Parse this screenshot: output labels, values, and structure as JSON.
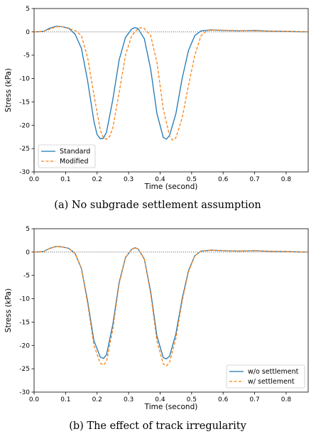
{
  "chart_data": [
    {
      "type": "line",
      "title": "",
      "xlabel": "Time (second)",
      "ylabel": "Stress (kPa)",
      "xlim": [
        0.0,
        0.87
      ],
      "ylim": [
        -30,
        5
      ],
      "xticks": [
        "0.0",
        "0.1",
        "0.2",
        "0.3",
        "0.4",
        "0.5",
        "0.6",
        "0.7",
        "0.8"
      ],
      "yticks": [
        "5",
        "0",
        "-5",
        "-10",
        "-15",
        "-20",
        "-25",
        "-30"
      ],
      "reference_line": {
        "y": 0,
        "style": "dotted",
        "color": "#555555"
      },
      "legend": {
        "placement": "lower-left"
      },
      "caption": "(a)  No subgrade settlement assumption",
      "series": [
        {
          "name": "Standard",
          "color": "#1f77b4",
          "style": "solid",
          "x": [
            0,
            0.03,
            0.05,
            0.07,
            0.09,
            0.11,
            0.13,
            0.15,
            0.17,
            0.19,
            0.2,
            0.21,
            0.22,
            0.23,
            0.25,
            0.27,
            0.29,
            0.31,
            0.32,
            0.33,
            0.35,
            0.37,
            0.39,
            0.41,
            0.42,
            0.43,
            0.45,
            0.47,
            0.49,
            0.51,
            0.53,
            0.56,
            0.6,
            0.65,
            0.7,
            0.75,
            0.8,
            0.87
          ],
          "y": [
            0,
            0.1,
            0.8,
            1.2,
            1.1,
            0.8,
            -0.5,
            -3.5,
            -10.5,
            -19.2,
            -22,
            -22.9,
            -22.8,
            -21.5,
            -14.5,
            -6,
            -1.2,
            0.6,
            0.9,
            0.7,
            -1.5,
            -8,
            -17.5,
            -22.6,
            -23,
            -22.2,
            -17.5,
            -10,
            -4,
            -0.8,
            0.2,
            0.4,
            0.3,
            0.2,
            0.3,
            0.15,
            0.1,
            0
          ]
        },
        {
          "name": "Modified",
          "color": "#ff7f0e",
          "style": "dashed",
          "x": [
            0,
            0.03,
            0.05,
            0.07,
            0.09,
            0.11,
            0.13,
            0.15,
            0.17,
            0.19,
            0.21,
            0.22,
            0.23,
            0.24,
            0.25,
            0.27,
            0.29,
            0.31,
            0.33,
            0.34,
            0.35,
            0.37,
            0.39,
            0.41,
            0.43,
            0.44,
            0.45,
            0.47,
            0.49,
            0.51,
            0.53,
            0.55,
            0.58,
            0.62,
            0.7,
            0.8,
            0.87
          ],
          "y": [
            0,
            0.1,
            0.6,
            1.1,
            1.1,
            0.7,
            0.3,
            -0.8,
            -5.5,
            -13.5,
            -21,
            -22.7,
            -23,
            -22.4,
            -20.5,
            -13,
            -5,
            -0.8,
            0.7,
            0.9,
            0.7,
            -0.8,
            -6.5,
            -16.5,
            -22.3,
            -23.2,
            -22.7,
            -18.5,
            -11.5,
            -5,
            -0.8,
            0.3,
            0.4,
            0.3,
            0.2,
            0.1,
            0
          ]
        }
      ]
    },
    {
      "type": "line",
      "title": "",
      "xlabel": "Time (second)",
      "ylabel": "Stress (kPa)",
      "xlim": [
        0.0,
        0.87
      ],
      "ylim": [
        -30,
        5
      ],
      "xticks": [
        "0.0",
        "0.1",
        "0.2",
        "0.3",
        "0.4",
        "0.5",
        "0.6",
        "0.7",
        "0.8"
      ],
      "yticks": [
        "5",
        "0",
        "-5",
        "-10",
        "-15",
        "-20",
        "-25",
        "-30"
      ],
      "reference_line": {
        "y": 0,
        "style": "dotted",
        "color": "#555555"
      },
      "legend": {
        "placement": "lower-right"
      },
      "caption": "(b)  The effect of track irregularity",
      "series": [
        {
          "name": "w/o settlement",
          "color": "#1f77b4",
          "style": "solid",
          "x": [
            0,
            0.03,
            0.05,
            0.07,
            0.09,
            0.11,
            0.13,
            0.15,
            0.17,
            0.19,
            0.21,
            0.22,
            0.23,
            0.25,
            0.27,
            0.29,
            0.31,
            0.32,
            0.33,
            0.35,
            0.37,
            0.39,
            0.41,
            0.42,
            0.43,
            0.45,
            0.47,
            0.49,
            0.51,
            0.53,
            0.56,
            0.6,
            0.65,
            0.7,
            0.75,
            0.8,
            0.87
          ],
          "y": [
            0,
            0.1,
            0.8,
            1.2,
            1.1,
            0.8,
            -0.3,
            -3.5,
            -10.5,
            -19,
            -22.5,
            -22.8,
            -22,
            -15.5,
            -6.5,
            -1.2,
            0.6,
            0.9,
            0.7,
            -1.5,
            -8.5,
            -18,
            -22.6,
            -22.9,
            -22.3,
            -17.5,
            -10,
            -4,
            -0.8,
            0.2,
            0.4,
            0.3,
            0.2,
            0.3,
            0.15,
            0.1,
            0
          ]
        },
        {
          "name": "w/ settlement",
          "color": "#ff7f0e",
          "style": "dashed",
          "x": [
            0,
            0.03,
            0.05,
            0.07,
            0.09,
            0.11,
            0.13,
            0.15,
            0.17,
            0.19,
            0.21,
            0.22,
            0.23,
            0.25,
            0.27,
            0.29,
            0.31,
            0.32,
            0.33,
            0.35,
            0.37,
            0.39,
            0.41,
            0.42,
            0.43,
            0.45,
            0.47,
            0.49,
            0.51,
            0.53,
            0.56,
            0.6,
            0.65,
            0.7,
            0.75,
            0.8,
            0.87
          ],
          "y": [
            0,
            0.1,
            0.8,
            1.2,
            1.1,
            0.8,
            -0.3,
            -3.5,
            -11,
            -20,
            -23.8,
            -24.2,
            -23.5,
            -16.5,
            -6.8,
            -1.2,
            0.6,
            0.9,
            0.7,
            -1.5,
            -9,
            -19,
            -24,
            -24.4,
            -23.6,
            -18.5,
            -10.5,
            -4.2,
            -0.8,
            0.2,
            0.4,
            0.3,
            0.2,
            0.3,
            0.15,
            0.1,
            0
          ]
        }
      ]
    }
  ]
}
